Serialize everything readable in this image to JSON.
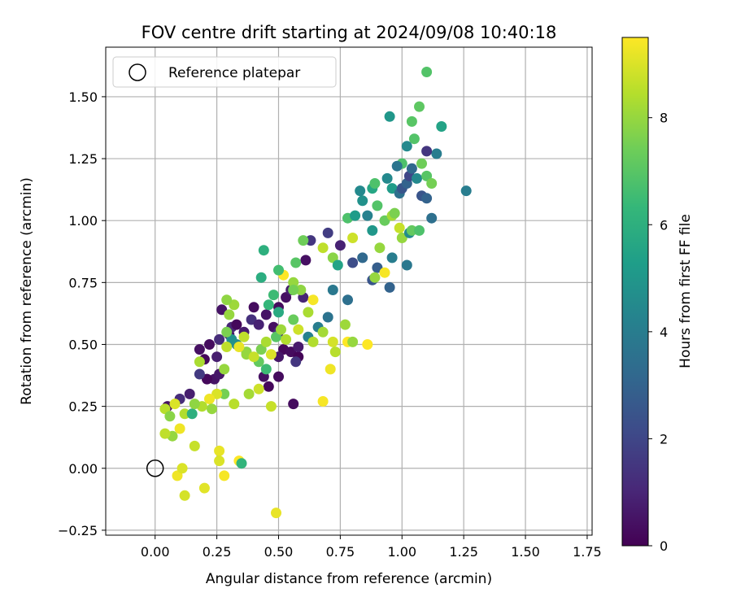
{
  "chart_data": {
    "type": "scatter",
    "title": "FOV centre drift starting at 2024/09/08 10:40:18",
    "xlabel": "Angular distance from reference (arcmin)",
    "ylabel": "Rotation from reference (arcmin)",
    "xlim": [
      -0.2,
      1.77
    ],
    "ylim": [
      -0.27,
      1.7
    ],
    "xticks": [
      0.0,
      0.25,
      0.5,
      0.75,
      1.0,
      1.25,
      1.5,
      1.75
    ],
    "xtick_labels": [
      "0.00",
      "0.25",
      "0.50",
      "0.75",
      "1.00",
      "1.25",
      "1.50",
      "1.75"
    ],
    "yticks": [
      -0.25,
      0.0,
      0.25,
      0.5,
      0.75,
      1.0,
      1.25,
      1.5
    ],
    "ytick_labels": [
      "−0.25",
      "0.00",
      "0.25",
      "0.50",
      "0.75",
      "1.00",
      "1.25",
      "1.50"
    ],
    "grid": true,
    "legend": {
      "location": "upper-left",
      "entries": [
        "Reference platepar"
      ]
    },
    "reference_point": {
      "x": 0.0,
      "y": 0.0,
      "marker": "hollow-circle"
    },
    "colorbar": {
      "label": "Hours from first FF file",
      "colormap": "viridis",
      "range": [
        0,
        9.5
      ],
      "ticks": [
        0,
        2,
        4,
        6,
        8
      ],
      "tick_labels": [
        "0",
        "2",
        "4",
        "6",
        "8"
      ]
    },
    "points": [
      [
        0.2,
        0.44,
        0.2
      ],
      [
        0.18,
        0.48,
        0.4
      ],
      [
        0.22,
        0.5,
        0.3
      ],
      [
        0.25,
        0.45,
        0.8
      ],
      [
        0.26,
        0.52,
        1.2
      ],
      [
        0.27,
        0.64,
        0.5
      ],
      [
        0.3,
        0.54,
        0.6
      ],
      [
        0.31,
        0.57,
        1.0
      ],
      [
        0.33,
        0.58,
        0.2
      ],
      [
        0.36,
        0.55,
        0.7
      ],
      [
        0.39,
        0.6,
        1.3
      ],
      [
        0.4,
        0.65,
        0.3
      ],
      [
        0.42,
        0.58,
        0.9
      ],
      [
        0.45,
        0.62,
        0.5
      ],
      [
        0.48,
        0.57,
        0.4
      ],
      [
        0.5,
        0.55,
        1.1
      ],
      [
        0.52,
        0.48,
        0.2
      ],
      [
        0.5,
        0.45,
        0.6
      ],
      [
        0.55,
        0.47,
        0.3
      ],
      [
        0.58,
        0.45,
        0.1
      ],
      [
        0.57,
        0.43,
        1.5
      ],
      [
        0.53,
        0.69,
        0.4
      ],
      [
        0.55,
        0.72,
        0.8
      ],
      [
        0.5,
        0.65,
        0.3
      ],
      [
        0.61,
        0.84,
        0.4
      ],
      [
        0.6,
        0.69,
        1.0
      ],
      [
        0.63,
        0.92,
        1.5
      ],
      [
        0.7,
        0.95,
        1.7
      ],
      [
        0.75,
        0.9,
        0.9
      ],
      [
        0.8,
        0.83,
        2.2
      ],
      [
        0.88,
        0.76,
        2.5
      ],
      [
        0.95,
        0.73,
        3.0
      ],
      [
        0.9,
        0.81,
        2.8
      ],
      [
        0.84,
        0.85,
        3.2
      ],
      [
        0.78,
        0.68,
        3.5
      ],
      [
        0.72,
        0.72,
        3.8
      ],
      [
        0.7,
        0.61,
        3.6
      ],
      [
        0.66,
        0.57,
        4.0
      ],
      [
        0.62,
        0.53,
        4.2
      ],
      [
        0.58,
        0.49,
        0.7
      ],
      [
        0.44,
        0.37,
        0.4
      ],
      [
        0.46,
        0.33,
        0.2
      ],
      [
        0.5,
        0.37,
        0.3
      ],
      [
        0.56,
        0.26,
        0.3
      ],
      [
        0.45,
        0.4,
        6.5
      ],
      [
        0.42,
        0.43,
        7.2
      ],
      [
        0.37,
        0.47,
        7.8
      ],
      [
        0.33,
        0.5,
        4.5
      ],
      [
        0.31,
        0.52,
        4.8
      ],
      [
        0.29,
        0.49,
        8.6
      ],
      [
        0.24,
        0.36,
        0.5
      ],
      [
        0.26,
        0.38,
        0.6
      ],
      [
        0.28,
        0.4,
        8.0
      ],
      [
        0.21,
        0.36,
        0.2
      ],
      [
        0.18,
        0.38,
        1.6
      ],
      [
        0.14,
        0.3,
        0.8
      ],
      [
        0.1,
        0.28,
        1.2
      ],
      [
        0.05,
        0.25,
        0.4
      ],
      [
        0.04,
        0.24,
        8.5
      ],
      [
        0.08,
        0.26,
        9.0
      ],
      [
        0.12,
        0.22,
        8.4
      ],
      [
        0.15,
        0.22,
        6.0
      ],
      [
        0.06,
        0.21,
        7.8
      ],
      [
        0.07,
        0.13,
        8.0
      ],
      [
        0.04,
        0.14,
        8.6
      ],
      [
        0.1,
        0.16,
        9.3
      ],
      [
        0.16,
        0.09,
        8.7
      ],
      [
        0.26,
        0.07,
        9.2
      ],
      [
        0.26,
        0.03,
        9.0
      ],
      [
        0.28,
        -0.03,
        9.4
      ],
      [
        0.09,
        -0.03,
        9.3
      ],
      [
        0.11,
        0.0,
        9.0
      ],
      [
        0.12,
        -0.11,
        8.9
      ],
      [
        0.2,
        -0.08,
        9.1
      ],
      [
        0.34,
        0.03,
        9.5
      ],
      [
        0.35,
        0.02,
        6.2
      ],
      [
        0.49,
        -0.18,
        9.2
      ],
      [
        0.47,
        0.25,
        8.7
      ],
      [
        0.42,
        0.32,
        8.8
      ],
      [
        0.38,
        0.3,
        8.2
      ],
      [
        0.32,
        0.26,
        8.5
      ],
      [
        0.28,
        0.3,
        7.5
      ],
      [
        0.25,
        0.3,
        9.0
      ],
      [
        0.22,
        0.28,
        9.3
      ],
      [
        0.23,
        0.24,
        8.0
      ],
      [
        0.19,
        0.25,
        8.4
      ],
      [
        0.16,
        0.26,
        7.9
      ],
      [
        0.18,
        0.43,
        8.3
      ],
      [
        0.29,
        0.55,
        7.6
      ],
      [
        0.3,
        0.62,
        8.0
      ],
      [
        0.32,
        0.66,
        8.1
      ],
      [
        0.29,
        0.68,
        7.9
      ],
      [
        0.36,
        0.53,
        8.6
      ],
      [
        0.34,
        0.49,
        9.2
      ],
      [
        0.37,
        0.46,
        8.0
      ],
      [
        0.4,
        0.45,
        8.7
      ],
      [
        0.43,
        0.48,
        7.6
      ],
      [
        0.45,
        0.51,
        8.3
      ],
      [
        0.47,
        0.46,
        9.0
      ],
      [
        0.49,
        0.53,
        7.0
      ],
      [
        0.51,
        0.56,
        8.1
      ],
      [
        0.53,
        0.52,
        8.4
      ],
      [
        0.56,
        0.6,
        7.3
      ],
      [
        0.58,
        0.56,
        8.8
      ],
      [
        0.56,
        0.75,
        8.0
      ],
      [
        0.59,
        0.72,
        7.9
      ],
      [
        0.62,
        0.63,
        8.3
      ],
      [
        0.64,
        0.68,
        9.4
      ],
      [
        0.68,
        0.55,
        8.2
      ],
      [
        0.72,
        0.51,
        8.9
      ],
      [
        0.77,
        0.58,
        8.1
      ],
      [
        0.78,
        0.51,
        9.5
      ],
      [
        0.8,
        0.51,
        8.0
      ],
      [
        0.86,
        0.5,
        9.6
      ],
      [
        0.93,
        0.79,
        9.4
      ],
      [
        0.89,
        0.77,
        8.0
      ],
      [
        0.68,
        0.27,
        9.4
      ],
      [
        0.71,
        0.4,
        9.3
      ],
      [
        0.73,
        0.47,
        8.5
      ],
      [
        0.64,
        0.51,
        8.4
      ],
      [
        0.52,
        0.78,
        9.5
      ],
      [
        0.56,
        0.72,
        7.5
      ],
      [
        0.48,
        0.7,
        6.5
      ],
      [
        0.46,
        0.66,
        6.3
      ],
      [
        0.5,
        0.63,
        5.8
      ],
      [
        0.44,
        0.88,
        6.0
      ],
      [
        0.43,
        0.77,
        5.9
      ],
      [
        0.5,
        0.8,
        6.6
      ],
      [
        0.57,
        0.83,
        7.0
      ],
      [
        0.6,
        0.92,
        7.4
      ],
      [
        0.68,
        0.89,
        8.6
      ],
      [
        0.72,
        0.85,
        7.8
      ],
      [
        0.74,
        0.82,
        5.5
      ],
      [
        0.78,
        1.01,
        6.8
      ],
      [
        0.8,
        0.93,
        8.8
      ],
      [
        0.81,
        1.02,
        5.2
      ],
      [
        0.84,
        1.08,
        4.8
      ],
      [
        0.83,
        1.12,
        4.5
      ],
      [
        0.86,
        1.02,
        4.2
      ],
      [
        0.88,
        0.96,
        5.0
      ],
      [
        0.9,
        1.06,
        6.9
      ],
      [
        0.93,
        1.0,
        7.3
      ],
      [
        0.96,
        1.02,
        8.2
      ],
      [
        0.97,
        1.03,
        7.6
      ],
      [
        0.99,
        0.97,
        8.7
      ],
      [
        1.0,
        0.93,
        8.0
      ],
      [
        1.03,
        0.95,
        4.6
      ],
      [
        1.04,
        0.96,
        7.2
      ],
      [
        1.02,
        0.82,
        3.8
      ],
      [
        0.96,
        0.85,
        4.0
      ],
      [
        1.07,
        0.96,
        6.8
      ],
      [
        0.91,
        0.89,
        8.0
      ],
      [
        0.88,
        1.13,
        5.6
      ],
      [
        0.89,
        1.15,
        6.8
      ],
      [
        0.94,
        1.17,
        4.5
      ],
      [
        0.96,
        1.13,
        5.2
      ],
      [
        0.99,
        1.11,
        3.5
      ],
      [
        1.0,
        1.13,
        2.5
      ],
      [
        1.02,
        1.15,
        3.0
      ],
      [
        1.03,
        1.18,
        2.0
      ],
      [
        1.04,
        1.21,
        3.2
      ],
      [
        1.06,
        1.17,
        4.5
      ],
      [
        1.08,
        1.1,
        2.5
      ],
      [
        1.1,
        1.09,
        3.0
      ],
      [
        1.12,
        1.01,
        3.5
      ],
      [
        1.1,
        1.18,
        7.0
      ],
      [
        1.12,
        1.15,
        7.5
      ],
      [
        1.14,
        1.27,
        4.0
      ],
      [
        1.16,
        1.38,
        5.5
      ],
      [
        1.1,
        1.28,
        1.5
      ],
      [
        1.08,
        1.23,
        7.4
      ],
      [
        1.05,
        1.33,
        6.9
      ],
      [
        1.04,
        1.4,
        7.0
      ],
      [
        1.02,
        1.3,
        4.5
      ],
      [
        1.0,
        1.23,
        6.8
      ],
      [
        0.98,
        1.22,
        3.7
      ],
      [
        0.95,
        1.42,
        5.0
      ],
      [
        1.07,
        1.46,
        7.1
      ],
      [
        1.1,
        1.6,
        6.9
      ],
      [
        1.26,
        1.12,
        4.0
      ]
    ]
  }
}
